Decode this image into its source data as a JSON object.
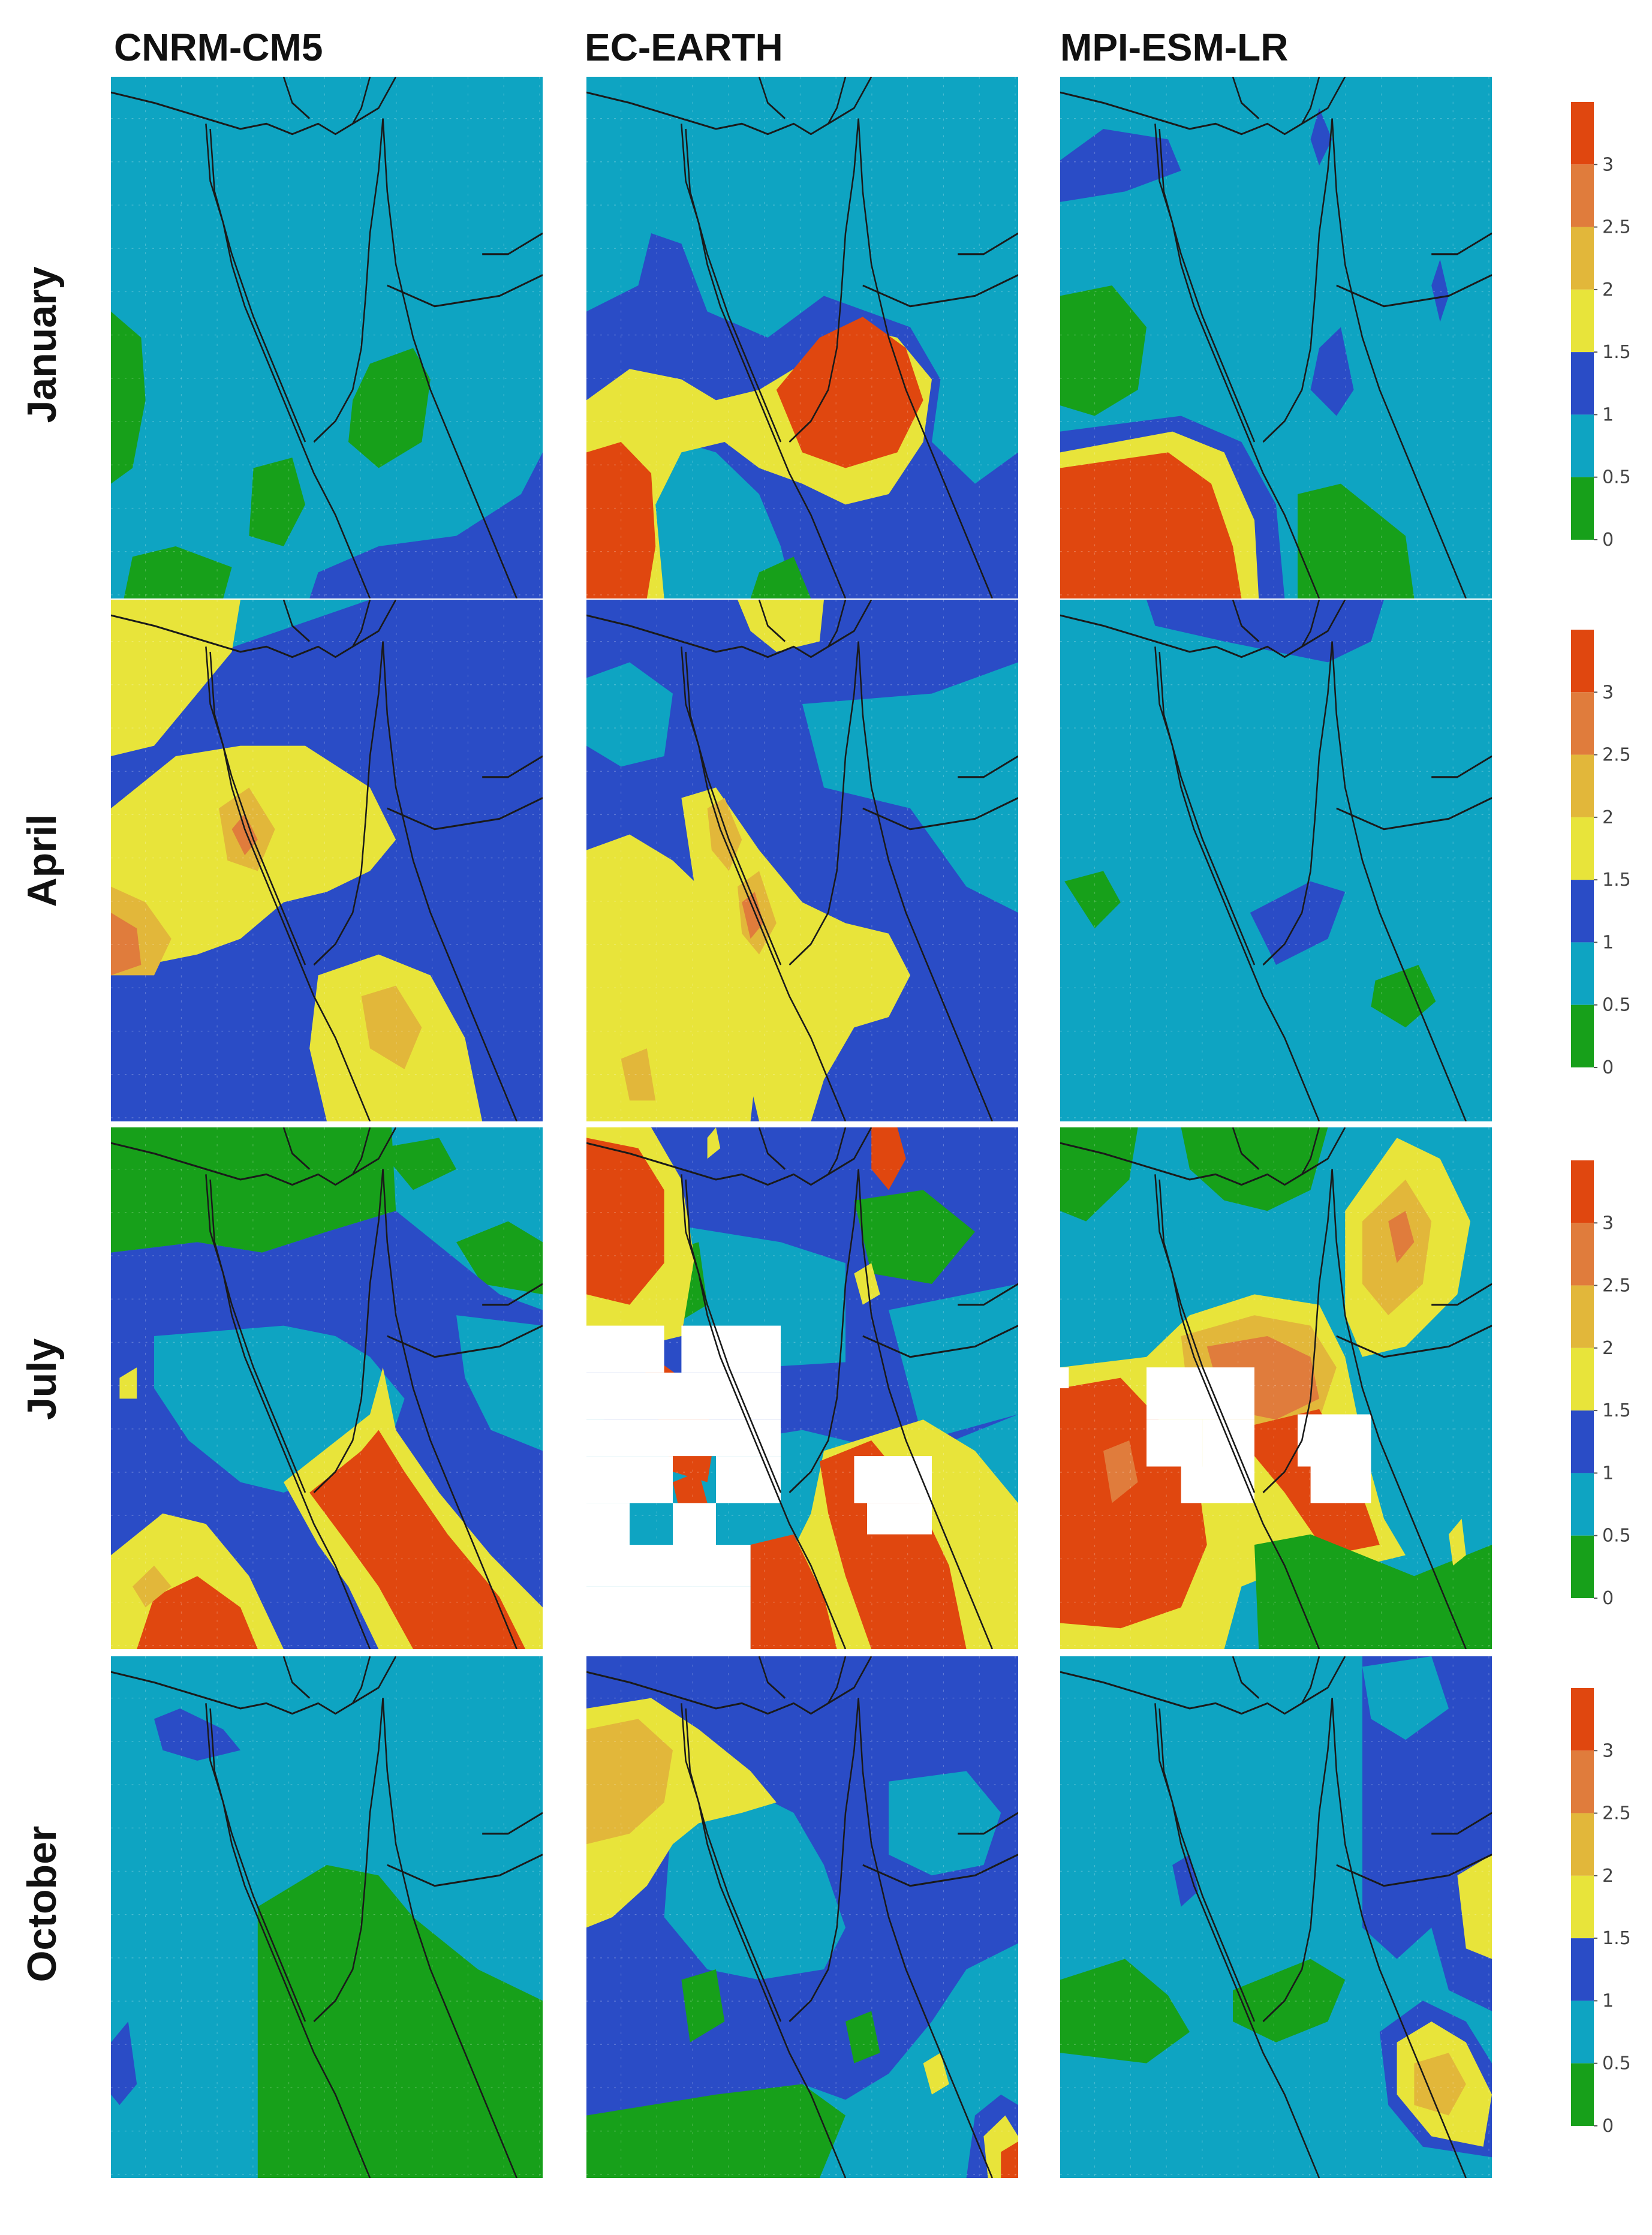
{
  "columns": [
    "CNRM-CM5",
    "EC-EARTH",
    "MPI-ESM-LR"
  ],
  "rows": [
    "January",
    "April",
    "July",
    "October"
  ],
  "colorbar": {
    "tick_labels": [
      "3",
      "2.5",
      "2",
      "1.5",
      "1",
      "0.5",
      "0"
    ],
    "colors": [
      "#e0470f",
      "#e07c3c",
      "#e2b73a",
      "#e8e43a",
      "#2a4cc6",
      "#0ea4c2",
      "#17a01a"
    ]
  },
  "palette": {
    "background": "#0ea4c2",
    "green": "#17a01a",
    "blue": "#2a4cc6",
    "yellow": "#e8e43a",
    "gold": "#e2b73a",
    "orange": "#e07c3c",
    "red": "#e0470f",
    "mask": "#ffffff",
    "coastline": "#1a1a1a"
  }
}
